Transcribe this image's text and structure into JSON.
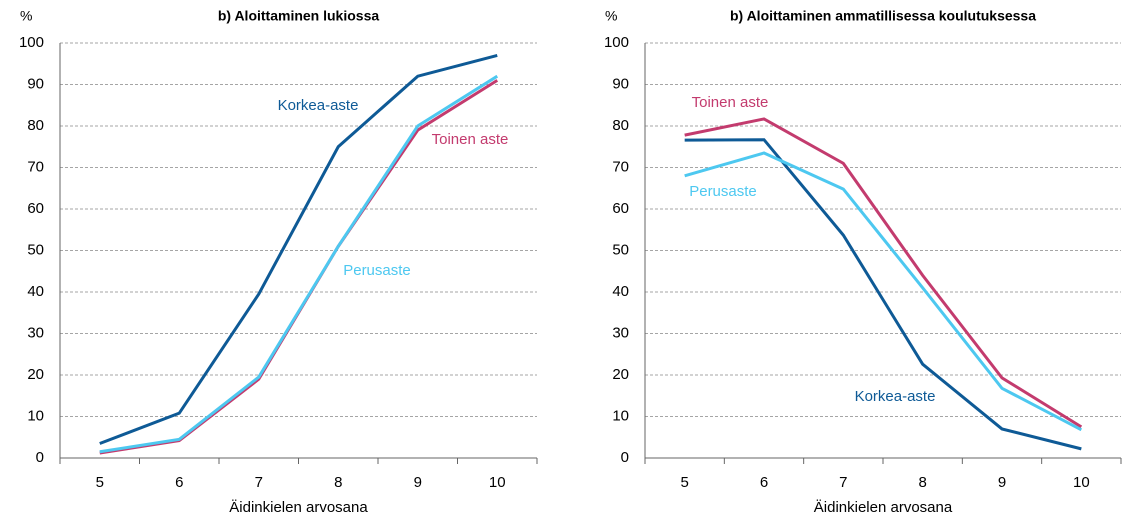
{
  "chart_data": [
    {
      "type": "line",
      "title": "b) Aloittaminen lukiossa",
      "y_label": "%",
      "x_label": "Äidinkielen arvosana",
      "categories": [
        "5",
        "6",
        "7",
        "8",
        "9",
        "10"
      ],
      "series": [
        {
          "name": "Korkea-aste",
          "color": "#0e5a96",
          "values": [
            3.5,
            10.8,
            39.5,
            75,
            92,
            97
          ]
        },
        {
          "name": "Toinen aste",
          "color": "#c33b6e",
          "values": [
            1.2,
            4.2,
            19,
            51,
            79,
            91
          ]
        },
        {
          "name": "Perusaste",
          "color": "#4dc8f0",
          "values": [
            1.5,
            4.5,
            19.5,
            51,
            80,
            92
          ]
        }
      ],
      "ylim": [
        0,
        100
      ],
      "yticks": [
        0,
        10,
        20,
        30,
        40,
        50,
        60,
        70,
        80,
        90,
        100
      ],
      "grid": true
    },
    {
      "type": "line",
      "title": "b) Aloittaminen ammatillisessa koulutuksessa",
      "y_label": "%",
      "x_label": "Äidinkielen arvosana",
      "categories": [
        "5",
        "6",
        "7",
        "8",
        "9",
        "10"
      ],
      "series": [
        {
          "name": "Korkea-aste",
          "color": "#0e5a96",
          "values": [
            76.6,
            76.7,
            53.7,
            22.6,
            7,
            2.2
          ]
        },
        {
          "name": "Toinen aste",
          "color": "#c33b6e",
          "values": [
            77.8,
            81.7,
            71,
            44,
            19.3,
            7.5
          ]
        },
        {
          "name": "Perusaste",
          "color": "#4dc8f0",
          "values": [
            68,
            73.5,
            64.8,
            41,
            16.8,
            6.8
          ]
        }
      ],
      "ylim": [
        0,
        100
      ],
      "yticks": [
        0,
        10,
        20,
        30,
        40,
        50,
        60,
        70,
        80,
        90,
        100
      ],
      "grid": true
    }
  ]
}
